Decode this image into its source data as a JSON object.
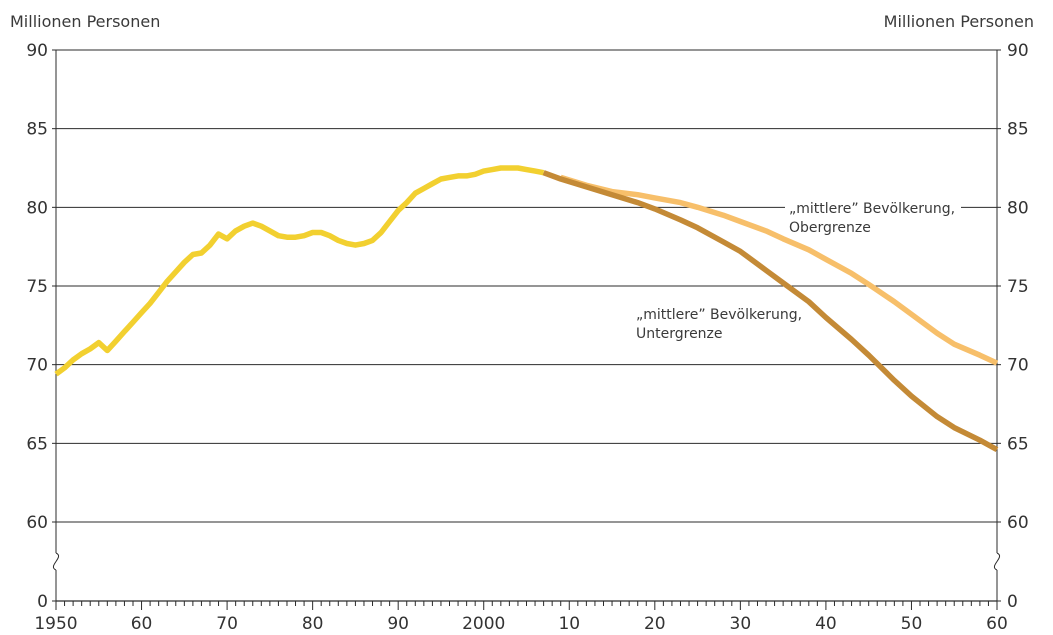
{
  "chart_data": {
    "type": "line",
    "title": "",
    "ylabel_left": "Millionen Personen",
    "ylabel_right": "Millionen Personen",
    "y_ticks": [
      90,
      85,
      80,
      75,
      70,
      65,
      60,
      0
    ],
    "y_axis_break": "between 0 and 60",
    "ylim": [
      60,
      90
    ],
    "xlim": [
      1950,
      2060
    ],
    "x_ticks": [
      {
        "value": 1950,
        "label": "1950"
      },
      {
        "value": 1960,
        "label": "60"
      },
      {
        "value": 1970,
        "label": "70"
      },
      {
        "value": 1980,
        "label": "80"
      },
      {
        "value": 1990,
        "label": "90"
      },
      {
        "value": 2000,
        "label": "2000"
      },
      {
        "value": 2010,
        "label": "10"
      },
      {
        "value": 2020,
        "label": "20"
      },
      {
        "value": 2030,
        "label": "30"
      },
      {
        "value": 2040,
        "label": "40"
      },
      {
        "value": 2050,
        "label": "50"
      },
      {
        "value": 2060,
        "label": "60"
      }
    ],
    "grid": "horizontal",
    "series": [
      {
        "color": "#f2d030",
        "points": [
          [
            1950,
            69.4
          ],
          [
            1951,
            69.8
          ],
          [
            1952,
            70.3
          ],
          [
            1953,
            70.7
          ],
          [
            1954,
            71.0
          ],
          [
            1955,
            71.4
          ],
          [
            1956,
            70.9
          ],
          [
            1957,
            71.5
          ],
          [
            1958,
            72.1
          ],
          [
            1959,
            72.7
          ],
          [
            1960,
            73.3
          ],
          [
            1961,
            73.9
          ],
          [
            1962,
            74.6
          ],
          [
            1963,
            75.3
          ],
          [
            1964,
            75.9
          ],
          [
            1965,
            76.5
          ],
          [
            1966,
            77.0
          ],
          [
            1967,
            77.1
          ],
          [
            1968,
            77.6
          ],
          [
            1969,
            78.3
          ],
          [
            1970,
            78.0
          ],
          [
            1971,
            78.5
          ],
          [
            1972,
            78.8
          ],
          [
            1973,
            79.0
          ],
          [
            1974,
            78.8
          ],
          [
            1975,
            78.5
          ],
          [
            1976,
            78.2
          ],
          [
            1977,
            78.1
          ],
          [
            1978,
            78.1
          ],
          [
            1979,
            78.2
          ],
          [
            1980,
            78.4
          ],
          [
            1981,
            78.4
          ],
          [
            1982,
            78.2
          ],
          [
            1983,
            77.9
          ],
          [
            1984,
            77.7
          ],
          [
            1985,
            77.6
          ],
          [
            1986,
            77.7
          ],
          [
            1987,
            77.9
          ],
          [
            1988,
            78.4
          ],
          [
            1989,
            79.1
          ],
          [
            1990,
            79.8
          ],
          [
            1991,
            80.3
          ],
          [
            1992,
            80.9
          ],
          [
            1993,
            81.2
          ],
          [
            1994,
            81.5
          ],
          [
            1995,
            81.8
          ],
          [
            1996,
            81.9
          ],
          [
            1997,
            82.0
          ],
          [
            1998,
            82.0
          ],
          [
            1999,
            82.1
          ],
          [
            2000,
            82.3
          ],
          [
            2001,
            82.4
          ],
          [
            2002,
            82.5
          ],
          [
            2003,
            82.5
          ],
          [
            2004,
            82.5
          ],
          [
            2005,
            82.4
          ],
          [
            2006,
            82.3
          ],
          [
            2007,
            82.2
          ]
        ]
      },
      {
        "color": "#f7bf6a",
        "annotation": [
          "„mittlere” Bevölkerung,",
          "Obergrenze"
        ],
        "points": [
          [
            2009,
            81.9
          ],
          [
            2012,
            81.4
          ],
          [
            2015,
            81.0
          ],
          [
            2018,
            80.8
          ],
          [
            2020,
            80.6
          ],
          [
            2023,
            80.3
          ],
          [
            2025,
            80.0
          ],
          [
            2028,
            79.5
          ],
          [
            2030,
            79.1
          ],
          [
            2033,
            78.5
          ],
          [
            2035,
            78.0
          ],
          [
            2038,
            77.3
          ],
          [
            2040,
            76.7
          ],
          [
            2043,
            75.8
          ],
          [
            2045,
            75.1
          ],
          [
            2048,
            74.0
          ],
          [
            2050,
            73.2
          ],
          [
            2053,
            72.0
          ],
          [
            2055,
            71.3
          ],
          [
            2058,
            70.6
          ],
          [
            2060,
            70.1
          ]
        ]
      },
      {
        "color": "#c48a36",
        "annotation": [
          "„mittlere” Bevölkerung,",
          "Untergrenze"
        ],
        "points": [
          [
            2007,
            82.2
          ],
          [
            2009,
            81.8
          ],
          [
            2012,
            81.3
          ],
          [
            2015,
            80.8
          ],
          [
            2018,
            80.3
          ],
          [
            2020,
            79.9
          ],
          [
            2023,
            79.2
          ],
          [
            2025,
            78.7
          ],
          [
            2028,
            77.8
          ],
          [
            2030,
            77.2
          ],
          [
            2033,
            76.0
          ],
          [
            2035,
            75.2
          ],
          [
            2038,
            74.0
          ],
          [
            2040,
            73.0
          ],
          [
            2043,
            71.6
          ],
          [
            2045,
            70.6
          ],
          [
            2048,
            69.0
          ],
          [
            2050,
            68.0
          ],
          [
            2053,
            66.7
          ],
          [
            2055,
            66.0
          ],
          [
            2058,
            65.2
          ],
          [
            2060,
            64.6
          ]
        ]
      }
    ]
  }
}
